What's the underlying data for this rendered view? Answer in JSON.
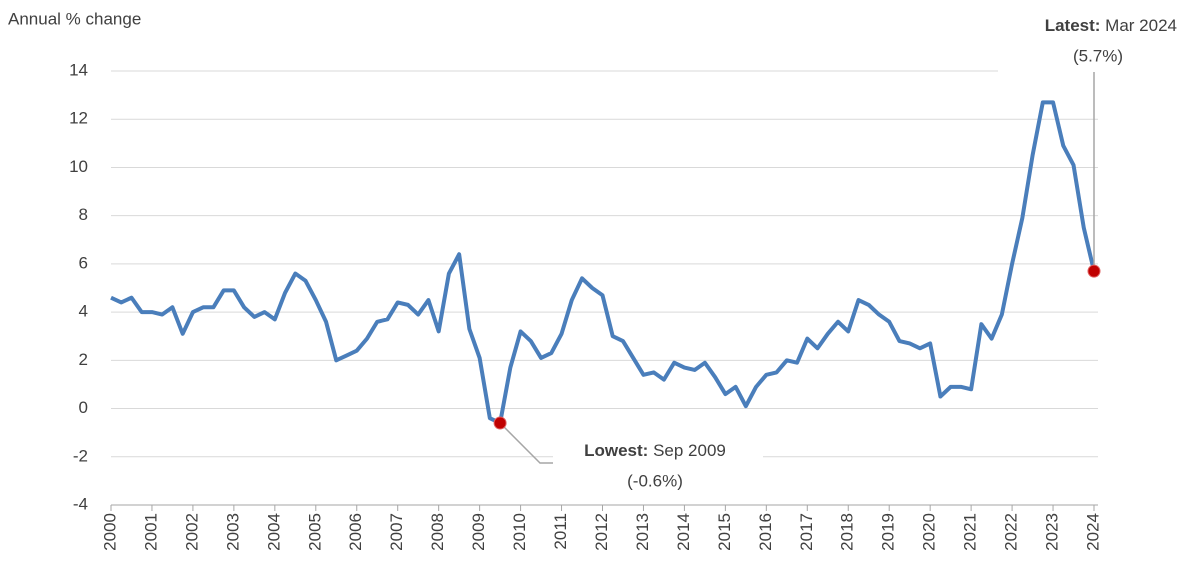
{
  "chart_data": {
    "type": "line",
    "y_label": "Annual % change",
    "categories": [
      "2000",
      null,
      null,
      null,
      "2001",
      null,
      null,
      null,
      "2002",
      null,
      null,
      null,
      "2003",
      null,
      null,
      null,
      "2004",
      null,
      null,
      null,
      "2005",
      null,
      null,
      null,
      "2006",
      null,
      null,
      null,
      "2007",
      null,
      null,
      null,
      "2008",
      null,
      null,
      null,
      "2009",
      null,
      null,
      null,
      "2010",
      null,
      null,
      null,
      "2011",
      null,
      null,
      null,
      "2012",
      null,
      null,
      null,
      "2013",
      null,
      null,
      null,
      "2014",
      null,
      null,
      null,
      "2015",
      null,
      null,
      null,
      "2016",
      null,
      null,
      null,
      "2017",
      null,
      null,
      null,
      "2018",
      null,
      null,
      null,
      "2019",
      null,
      null,
      null,
      "2020",
      null,
      null,
      null,
      "2021",
      null,
      null,
      null,
      "2022",
      null,
      null,
      null,
      "2023",
      null,
      null,
      null,
      "2024"
    ],
    "values": [
      4.6,
      4.4,
      4.6,
      4.0,
      4.0,
      3.9,
      4.2,
      3.1,
      4.0,
      4.2,
      4.2,
      4.9,
      4.9,
      4.2,
      3.8,
      4.0,
      3.7,
      4.8,
      5.6,
      5.3,
      4.5,
      3.6,
      2.0,
      2.2,
      2.4,
      2.9,
      3.6,
      3.7,
      4.4,
      4.3,
      3.9,
      4.5,
      3.2,
      5.6,
      6.4,
      3.3,
      2.1,
      -0.4,
      -0.6,
      1.7,
      3.2,
      2.8,
      2.1,
      2.3,
      3.1,
      4.5,
      5.4,
      5.0,
      4.7,
      3.0,
      2.8,
      2.1,
      1.4,
      1.5,
      1.2,
      1.9,
      1.7,
      1.6,
      1.9,
      1.3,
      0.6,
      0.9,
      0.1,
      0.9,
      1.4,
      1.5,
      2.0,
      1.9,
      2.9,
      2.5,
      3.1,
      3.6,
      3.2,
      4.5,
      4.3,
      3.9,
      3.6,
      2.8,
      2.7,
      2.5,
      2.7,
      0.5,
      0.9,
      0.9,
      0.8,
      3.5,
      2.9,
      3.9,
      6.0,
      7.9,
      10.5,
      12.7,
      12.7,
      10.9,
      10.1,
      7.5,
      5.7
    ],
    "color": "#4a7ebb",
    "marker_color": "#c00000",
    "ylim": [
      -4,
      14
    ],
    "yticks": [
      -4,
      -2,
      0,
      2,
      4,
      6,
      8,
      10,
      12,
      14
    ],
    "grid": true,
    "annotations": [
      {
        "bold": "Latest:",
        "date": "Mar 2024",
        "value_label": "(5.7%)",
        "value": 5.7
      },
      {
        "bold": "Lowest:",
        "date": "Sep 2009",
        "value_label": "(-0.6%)",
        "value": -0.6
      }
    ]
  }
}
